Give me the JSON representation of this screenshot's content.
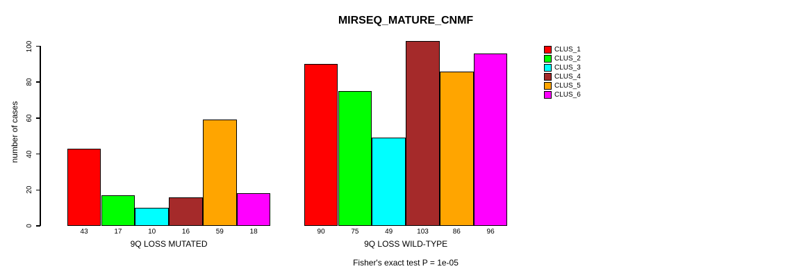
{
  "chart_data": {
    "type": "bar",
    "title": "MIRSEQ_MATURE_CNMF",
    "ylabel": "number of cases",
    "xlabel": "",
    "ylim": [
      0,
      100
    ],
    "yticks": [
      0,
      20,
      40,
      60,
      80,
      100
    ],
    "grid": false,
    "bar_value_labels_shown": true,
    "categories": [
      "9Q LOSS MUTATED",
      "9Q LOSS WILD-TYPE"
    ],
    "series": [
      {
        "name": "CLUS_1",
        "color": "#FF0000",
        "values": [
          43,
          90
        ]
      },
      {
        "name": "CLUS_2",
        "color": "#00FF00",
        "values": [
          17,
          75
        ]
      },
      {
        "name": "CLUS_3",
        "color": "#00FFFF",
        "values": [
          10,
          49
        ]
      },
      {
        "name": "CLUS_4",
        "color": "#A52A2A",
        "values": [
          16,
          103
        ]
      },
      {
        "name": "CLUS_5",
        "color": "#FFA500",
        "values": [
          59,
          86
        ]
      },
      {
        "name": "CLUS_6",
        "color": "#FF00FF",
        "values": [
          18,
          96
        ]
      }
    ],
    "legend": {
      "position": "top-right",
      "entries": [
        {
          "label": "CLUS_1",
          "color": "#FF0000"
        },
        {
          "label": "CLUS_2",
          "color": "#00FF00"
        },
        {
          "label": "CLUS_3",
          "color": "#00FFFF"
        },
        {
          "label": "CLUS_4",
          "color": "#A52A2A"
        },
        {
          "label": "CLUS_5",
          "color": "#FFA500"
        },
        {
          "label": "CLUS_6",
          "color": "#FF00FF"
        }
      ]
    },
    "annotation": "Fisher's exact test P = 1e-05",
    "axis_color": "#000000",
    "background_color": "#FFFFFF"
  }
}
